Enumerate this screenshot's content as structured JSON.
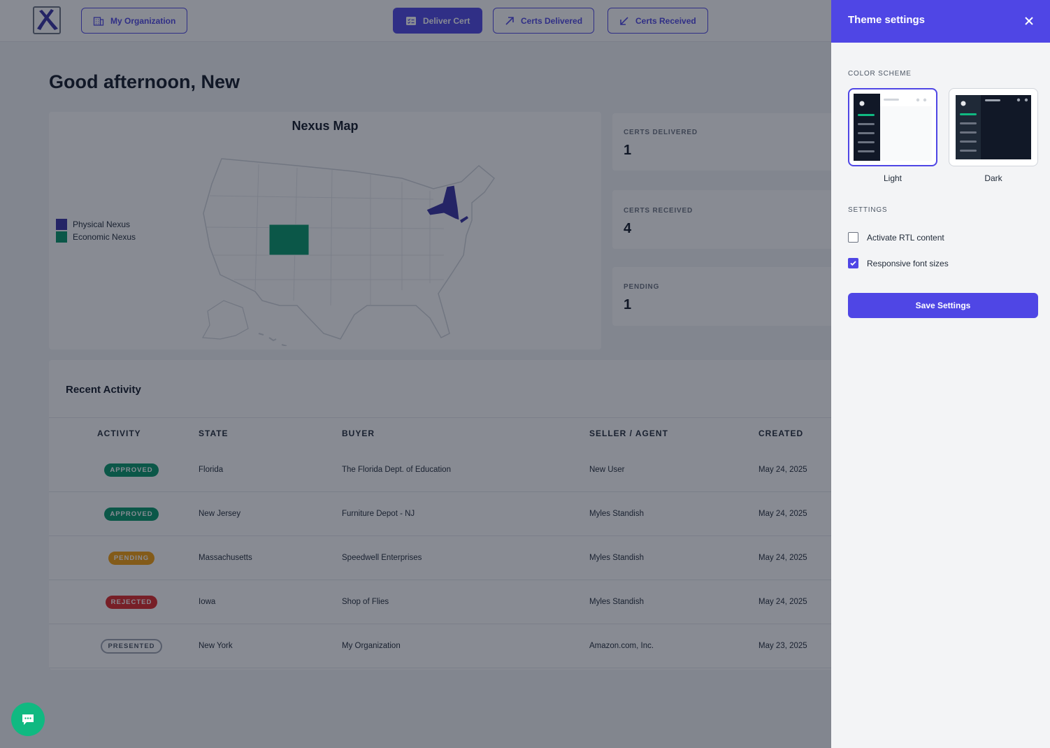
{
  "header": {
    "my_org_label": "My Organization",
    "deliver_cert_label": "Deliver Cert",
    "certs_delivered_label": "Certs Delivered",
    "certs_received_label": "Certs Received"
  },
  "greeting": "Good afternoon, New",
  "map": {
    "title": "Nexus Map",
    "legend": [
      {
        "label": "Physical Nexus",
        "color": "#3730a3"
      },
      {
        "label": "Economic Nexus",
        "color": "#059669"
      }
    ],
    "physical_states": [
      "New York"
    ],
    "economic_states": [
      "Colorado"
    ]
  },
  "stats": [
    {
      "label": "CERTS DELIVERED",
      "value": "1"
    },
    {
      "label": "CERTS RECEIVED",
      "value": "4"
    },
    {
      "label": "PENDING",
      "value": "1"
    }
  ],
  "activity": {
    "title": "Recent Activity",
    "columns": [
      "ACTIVITY",
      "STATE",
      "BUYER",
      "SELLER / AGENT",
      "CREATED"
    ],
    "rows": [
      {
        "status": "APPROVED",
        "state": "Florida",
        "buyer": "The Florida Dept. of Education",
        "seller": "New User",
        "created": "May 24, 2025"
      },
      {
        "status": "APPROVED",
        "state": "New Jersey",
        "buyer": "Furniture Depot - NJ",
        "seller": "Myles Standish",
        "created": "May 24, 2025"
      },
      {
        "status": "PENDING",
        "state": "Massachusetts",
        "buyer": "Speedwell Enterprises",
        "seller": "Myles Standish",
        "created": "May 24, 2025"
      },
      {
        "status": "REJECTED",
        "state": "Iowa",
        "buyer": "Shop of Flies",
        "seller": "Myles Standish",
        "created": "May 24, 2025"
      },
      {
        "status": "PRESENTED",
        "state": "New York",
        "buyer": "My Organization",
        "seller": "Amazon.com, Inc.",
        "created": "May 23, 2025"
      }
    ]
  },
  "theme_panel": {
    "title": "Theme settings",
    "color_scheme_label": "COLOR SCHEME",
    "schemes": [
      {
        "name": "Light",
        "selected": true
      },
      {
        "name": "Dark",
        "selected": false
      }
    ],
    "settings_label": "SETTINGS",
    "rtl_label": "Activate RTL content",
    "rtl_checked": false,
    "responsive_label": "Responsive font sizes",
    "responsive_checked": true,
    "save_label": "Save Settings"
  },
  "colors": {
    "accent": "#4f46e5",
    "approved": "#059669",
    "pending": "#f59e0b",
    "rejected": "#dc2626",
    "chat": "#10b981"
  }
}
